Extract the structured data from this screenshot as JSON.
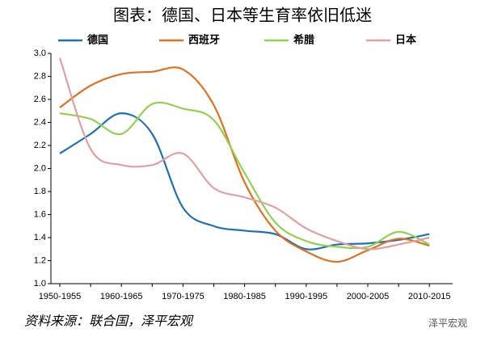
{
  "chart_data": {
    "type": "line",
    "title": "图表：德国、日本等生育率依旧低迷",
    "source": "资料来源：联合国，泽平宏观",
    "watermark": "泽平宏观",
    "categories": [
      "1950-1955",
      null,
      "1960-1965",
      null,
      "1970-1975",
      null,
      "1980-1985",
      null,
      "1990-1995",
      null,
      "2000-2005",
      null,
      "2010-2015"
    ],
    "series": [
      {
        "name": "德国",
        "color": "#1f6fb5",
        "values": [
          2.13,
          2.3,
          2.48,
          2.3,
          1.66,
          1.5,
          1.46,
          1.43,
          1.3,
          1.34,
          1.35,
          1.38,
          1.43
        ]
      },
      {
        "name": "西班牙",
        "color": "#e07020",
        "values": [
          2.53,
          2.72,
          2.82,
          2.84,
          2.86,
          2.55,
          1.88,
          1.46,
          1.28,
          1.19,
          1.29,
          1.39,
          1.33
        ]
      },
      {
        "name": "希腊",
        "color": "#92d050",
        "values": [
          2.48,
          2.43,
          2.3,
          2.56,
          2.52,
          2.42,
          1.96,
          1.53,
          1.37,
          1.32,
          1.32,
          1.45,
          1.34
        ]
      },
      {
        "name": "日本",
        "color": "#e0a0a0",
        "values": [
          2.96,
          2.17,
          2.03,
          2.03,
          2.13,
          1.83,
          1.75,
          1.66,
          1.48,
          1.37,
          1.3,
          1.34,
          1.4
        ]
      }
    ],
    "ylim": [
      1.0,
      3.0
    ],
    "yticks": [
      {
        "value": 1.0,
        "label": "1.0"
      },
      1.2,
      1.4,
      1.6,
      1.8,
      {
        "value": 2.0,
        "label": "2.0"
      },
      2.2,
      2.4,
      2.6,
      2.8,
      {
        "value": 3.0,
        "label": "3.0"
      }
    ],
    "grid": false
  }
}
